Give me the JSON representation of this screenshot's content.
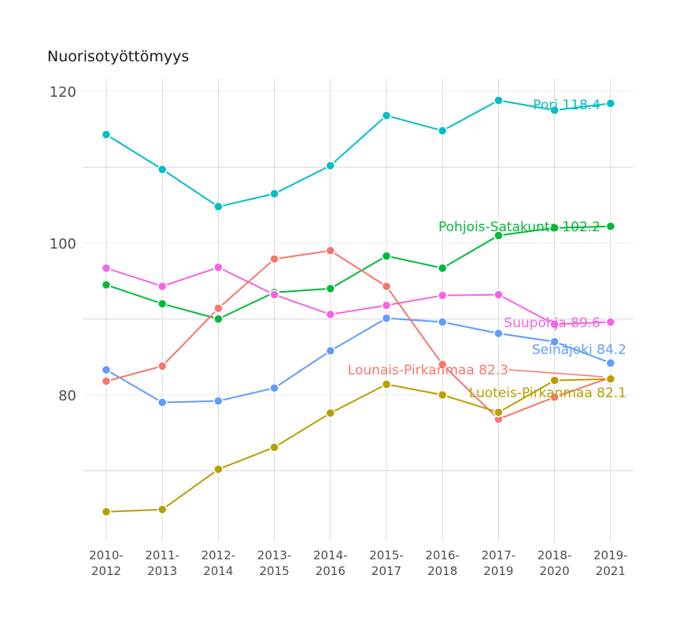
{
  "chart_data": {
    "type": "line",
    "title": "Nuorisotyöttömyys",
    "xlabel": "",
    "ylabel": "",
    "categories": [
      "2010-2012",
      "2011-2013",
      "2012-2014",
      "2013-2015",
      "2014-2016",
      "2015-2017",
      "2016-2018",
      "2017-2019",
      "2018-2020",
      "2019-2021"
    ],
    "category_lines": [
      [
        "2010-",
        "2012"
      ],
      [
        "2011-",
        "2013"
      ],
      [
        "2012-",
        "2014"
      ],
      [
        "2013-",
        "2015"
      ],
      [
        "2014-",
        "2016"
      ],
      [
        "2015-",
        "2017"
      ],
      [
        "2016-",
        "2018"
      ],
      [
        "2017-",
        "2019"
      ],
      [
        "2018-",
        "2020"
      ],
      [
        "2019-",
        "2021"
      ]
    ],
    "y_ticks": [
      80,
      100,
      120
    ],
    "ylim": [
      61,
      123
    ],
    "grid": true,
    "legend": "none; series labelled at the right end of each line",
    "series": [
      {
        "name": "Pori",
        "color": "#00BFC4",
        "label": "Pori 118.4",
        "values": [
          114.3,
          109.7,
          104.8,
          106.5,
          110.2,
          116.8,
          114.8,
          118.8,
          117.5,
          118.4
        ]
      },
      {
        "name": "Pohjois-Satakunta",
        "color": "#00BA38",
        "label": "Pohjois-Satakunta 102.2",
        "values": [
          94.5,
          92.0,
          90.0,
          93.5,
          94.0,
          98.3,
          96.7,
          101.0,
          102.0,
          102.2
        ]
      },
      {
        "name": "Suupohja",
        "color": "#F564E3",
        "label": "Suupohja 89.6",
        "values": [
          96.7,
          94.3,
          96.8,
          93.2,
          90.6,
          91.8,
          93.1,
          93.2,
          89.3,
          89.6
        ]
      },
      {
        "name": "Seinäjoki",
        "color": "#619CFF",
        "label": "Seinäjoki 84.2",
        "values": [
          83.3,
          79.0,
          79.2,
          80.9,
          85.8,
          90.1,
          89.6,
          88.1,
          87.0,
          84.2
        ]
      },
      {
        "name": "Lounais-Pirkanmaa",
        "color": "#F8766D",
        "label": "Lounais-Pirkanmaa 82.3",
        "values": [
          81.8,
          83.8,
          91.4,
          97.9,
          99.0,
          94.3,
          84.0,
          76.8,
          79.7,
          82.3
        ]
      },
      {
        "name": "Luoteis-Pirkanmaa",
        "color": "#B79F00",
        "label": "Luoteis-Pirkanmaa 82.1",
        "values": [
          64.6,
          64.9,
          70.2,
          73.1,
          77.6,
          81.4,
          80.0,
          77.7,
          81.9,
          82.1
        ]
      }
    ]
  }
}
